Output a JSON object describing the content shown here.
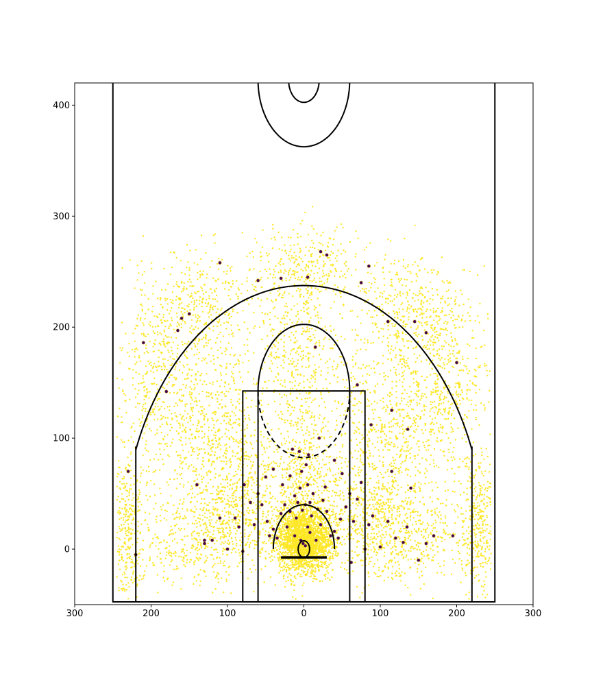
{
  "chart_data": {
    "type": "scatter",
    "title": "",
    "xlabel": "",
    "ylabel": "",
    "xlim": [
      300,
      -300
    ],
    "ylim": [
      -50,
      420
    ],
    "x_ticks": [
      300,
      200,
      100,
      0,
      -100,
      -200,
      -300
    ],
    "x_tick_labels": [
      "300",
      "200",
      "100",
      "0",
      "100",
      "200",
      "300"
    ],
    "y_ticks": [
      0,
      100,
      200,
      300,
      400
    ],
    "y_tick_labels": [
      "0",
      "100",
      "200",
      "300",
      "400"
    ],
    "grid": false,
    "legend": "none",
    "colors": {
      "made": "#fde725",
      "missed": "#440154",
      "court": "#000000"
    },
    "court": {
      "hoop": {
        "x": 0,
        "y": 0,
        "r": 7.5
      },
      "backboard": {
        "x1": -30,
        "x2": 30,
        "y": -7.5
      },
      "outer_paint": {
        "x1": -80,
        "x2": 80,
        "y1": -47.5,
        "y2": 142.5
      },
      "inner_paint": {
        "x1": -60,
        "x2": 60,
        "y1": -47.5,
        "y2": 142.5
      },
      "free_throw_circle": {
        "x": 0,
        "y": 142.5,
        "r": 60
      },
      "restricted_arc": {
        "x": 0,
        "y": 0,
        "r": 40
      },
      "three_point_corners": {
        "x": 220,
        "y1": -47.5,
        "y2": 92.5
      },
      "three_point_arc": {
        "x": 0,
        "y": 0,
        "r": 237.5
      },
      "outer_box": {
        "x1": -250,
        "x2": 250,
        "y1": -47.5,
        "y2": 422.5
      },
      "center_outer": {
        "x": 0,
        "y": 422.5,
        "r": 60
      },
      "center_inner": {
        "x": 0,
        "y": 422.5,
        "r": 20
      }
    },
    "series": [
      {
        "outcome": "made",
        "density_clusters": [
          {
            "x": 0,
            "y": 8,
            "sx": 18,
            "sy": 14,
            "n": 2200
          },
          {
            "x": 0,
            "y": 55,
            "sx": 28,
            "sy": 40,
            "n": 700
          },
          {
            "x": 0,
            "y": 175,
            "sx": 28,
            "sy": 30,
            "n": 350
          },
          {
            "x": 0,
            "y": 250,
            "sx": 38,
            "sy": 22,
            "n": 380
          },
          {
            "x": 140,
            "y": 215,
            "sx": 38,
            "sy": 25,
            "n": 420
          },
          {
            "x": -140,
            "y": 215,
            "sx": 38,
            "sy": 25,
            "n": 420
          },
          {
            "x": 190,
            "y": 150,
            "sx": 28,
            "sy": 40,
            "n": 380
          },
          {
            "x": -190,
            "y": 150,
            "sx": 28,
            "sy": 40,
            "n": 380
          },
          {
            "x": 230,
            "y": 20,
            "sx": 12,
            "sy": 35,
            "n": 360
          },
          {
            "x": -230,
            "y": 20,
            "sx": 12,
            "sy": 35,
            "n": 360
          },
          {
            "x": 140,
            "y": 10,
            "sx": 40,
            "sy": 22,
            "n": 450
          },
          {
            "x": -140,
            "y": 10,
            "sx": 40,
            "sy": 22,
            "n": 450
          },
          {
            "x": 120,
            "y": 110,
            "sx": 40,
            "sy": 40,
            "n": 650
          },
          {
            "x": -120,
            "y": 110,
            "sx": 40,
            "sy": 40,
            "n": 650
          },
          {
            "x": 85,
            "y": 35,
            "sx": 30,
            "sy": 30,
            "n": 450
          },
          {
            "x": -85,
            "y": 35,
            "sx": 30,
            "sy": 30,
            "n": 450
          }
        ]
      },
      {
        "outcome": "missed",
        "points": [
          [
            1,
            5
          ],
          [
            -2,
            3
          ],
          [
            4,
            8
          ],
          [
            -5,
            20
          ],
          [
            10,
            28
          ],
          [
            -10,
            30
          ],
          [
            18,
            34
          ],
          [
            -18,
            36
          ],
          [
            25,
            40
          ],
          [
            -25,
            44
          ],
          [
            12,
            48
          ],
          [
            -12,
            50
          ],
          [
            5,
            55
          ],
          [
            -5,
            58
          ],
          [
            30,
            32
          ],
          [
            -30,
            34
          ],
          [
            40,
            18
          ],
          [
            -40,
            16
          ],
          [
            48,
            25
          ],
          [
            -48,
            27
          ],
          [
            -35,
            12
          ],
          [
            35,
            10
          ],
          [
            22,
            20
          ],
          [
            -22,
            22
          ],
          [
            8,
            42
          ],
          [
            -8,
            42
          ],
          [
            60,
            50
          ],
          [
            -60,
            50
          ],
          [
            50,
            65
          ],
          [
            -50,
            68
          ],
          [
            -6,
            85
          ],
          [
            6,
            88
          ],
          [
            15,
            90
          ],
          [
            -20,
            100
          ],
          [
            -40,
            80
          ],
          [
            40,
            72
          ],
          [
            70,
            42
          ],
          [
            -70,
            45
          ],
          [
            -75,
            60
          ],
          [
            78,
            58
          ],
          [
            85,
            20
          ],
          [
            -85,
            22
          ],
          [
            -90,
            30
          ],
          [
            90,
            28
          ],
          [
            100,
            0
          ],
          [
            -100,
            2
          ],
          [
            80,
            -2
          ],
          [
            -80,
            0
          ],
          [
            -110,
            25
          ],
          [
            110,
            28
          ],
          [
            -120,
            10
          ],
          [
            120,
            8
          ],
          [
            130,
            8
          ],
          [
            -130,
            6
          ],
          [
            -140,
            55
          ],
          [
            140,
            58
          ],
          [
            -150,
            -10
          ],
          [
            -160,
            5
          ],
          [
            -170,
            12
          ],
          [
            -195,
            12
          ],
          [
            220,
            -5
          ],
          [
            -115,
            70
          ],
          [
            -88,
            112
          ],
          [
            -70,
            148
          ],
          [
            -115,
            125
          ],
          [
            -136,
            108
          ],
          [
            -110,
            205
          ],
          [
            -145,
            205
          ],
          [
            -160,
            195
          ],
          [
            -200,
            168
          ],
          [
            -85,
            255
          ],
          [
            -75,
            240
          ],
          [
            -30,
            265
          ],
          [
            -5,
            245
          ],
          [
            30,
            244
          ],
          [
            60,
            242
          ],
          [
            110,
            258
          ],
          [
            150,
            212
          ],
          [
            160,
            208
          ],
          [
            165,
            197
          ],
          [
            180,
            142
          ],
          [
            210,
            186
          ],
          [
            230,
            70
          ],
          [
            -15,
            182
          ],
          [
            -22,
            268
          ],
          [
            -2,
            40
          ],
          [
            2,
            35
          ],
          [
            -8,
            15
          ],
          [
            12,
            12
          ],
          [
            -16,
            8
          ],
          [
            18,
            66
          ],
          [
            -28,
            56
          ],
          [
            28,
            58
          ],
          [
            3,
            70
          ],
          [
            -3,
            76
          ],
          [
            45,
            12
          ],
          [
            -45,
            10
          ],
          [
            55,
            40
          ],
          [
            -55,
            38
          ],
          [
            -65,
            25
          ],
          [
            65,
            22
          ],
          [
            -62,
            -12
          ],
          [
            130,
            5
          ],
          [
            -135,
            20
          ]
        ]
      }
    ]
  }
}
